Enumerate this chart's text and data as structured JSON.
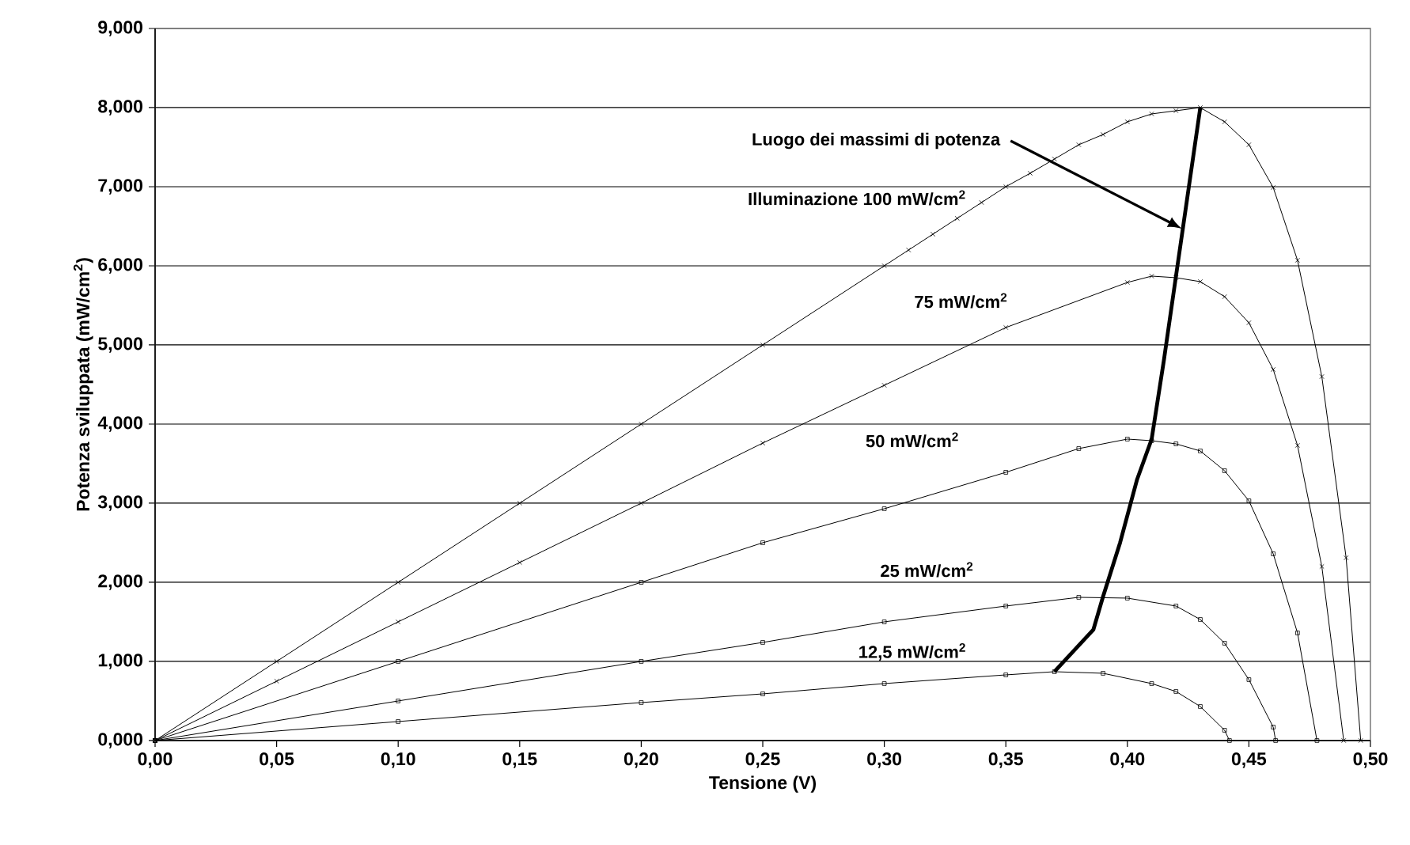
{
  "chart_data": {
    "type": "line",
    "xlabel": "Tensione (V)",
    "ylabel": "Potenza sviluppata (mW/cm$^{2}$)",
    "xlim": [
      0,
      0.5
    ],
    "ylim": [
      0,
      9
    ],
    "xticks": [
      {
        "value": 0,
        "label": "0,00"
      },
      {
        "value": 0.05,
        "label": "0,05"
      },
      {
        "value": 0.1,
        "label": "0,10"
      },
      {
        "value": 0.15,
        "label": "0,15"
      },
      {
        "value": 0.2,
        "label": "0,20"
      },
      {
        "value": 0.25,
        "label": "0,25"
      },
      {
        "value": 0.3,
        "label": "0,30"
      },
      {
        "value": 0.35,
        "label": "0,35"
      },
      {
        "value": 0.4,
        "label": "0,40"
      },
      {
        "value": 0.45,
        "label": "0,45"
      },
      {
        "value": 0.5,
        "label": "0,50"
      }
    ],
    "yticks": [
      {
        "value": 0,
        "label": "0,000"
      },
      {
        "value": 1,
        "label": "1,000"
      },
      {
        "value": 2,
        "label": "2,000"
      },
      {
        "value": 3,
        "label": "3,000"
      },
      {
        "value": 4,
        "label": "4,000"
      },
      {
        "value": 5,
        "label": "5,000"
      },
      {
        "value": 6,
        "label": "6,000"
      },
      {
        "value": 7,
        "label": "7,000"
      },
      {
        "value": 8,
        "label": "8,000"
      },
      {
        "value": 9,
        "label": "9,000"
      }
    ],
    "grid": "y",
    "legend": false,
    "annotations": [
      {
        "text": "Luogo dei massimi di potenza",
        "x": 0.4225,
        "y": 6.47
      }
    ],
    "series": [
      {
        "name": "Illuminazione 100 mW/cm$^{2}$",
        "color": "#000000",
        "marker": "cross",
        "x": [
          0,
          0.05,
          0.1,
          0.15,
          0.2,
          0.25,
          0.3,
          0.31,
          0.32,
          0.33,
          0.34,
          0.35,
          0.36,
          0.37,
          0.38,
          0.39,
          0.4,
          0.41,
          0.42,
          0.43,
          0.44,
          0.45,
          0.46,
          0.47,
          0.48,
          0.49,
          0.496
        ],
        "values": [
          0,
          1,
          2,
          3,
          4,
          5,
          6,
          6.2,
          6.4,
          6.6,
          6.8,
          7,
          7.17,
          7.35,
          7.53,
          7.66,
          7.82,
          7.92,
          7.96,
          8,
          7.82,
          7.53,
          6.99,
          6.07,
          4.6,
          2.31,
          0
        ]
      },
      {
        "name": "75 mW/cm$^{2}$",
        "color": "#000000",
        "marker": "cross",
        "x": [
          0,
          0.05,
          0.1,
          0.15,
          0.2,
          0.25,
          0.3,
          0.35,
          0.4,
          0.41,
          0.42,
          0.43,
          0.44,
          0.45,
          0.46,
          0.47,
          0.48,
          0.489
        ],
        "values": [
          0,
          0.75,
          1.5,
          2.25,
          3,
          3.76,
          4.49,
          5.22,
          5.79,
          5.87,
          5.85,
          5.8,
          5.61,
          5.28,
          4.69,
          3.73,
          2.2,
          0
        ]
      },
      {
        "name": "50 mW/cm$^{2}$",
        "color": "#000000",
        "marker": "square",
        "x": [
          0,
          0.1,
          0.2,
          0.25,
          0.3,
          0.35,
          0.38,
          0.4,
          0.41,
          0.42,
          0.43,
          0.44,
          0.45,
          0.46,
          0.47,
          0.478
        ],
        "values": [
          0,
          1,
          2,
          2.5,
          2.93,
          3.39,
          3.69,
          3.81,
          3.79,
          3.75,
          3.66,
          3.41,
          3.03,
          2.36,
          1.36,
          0
        ]
      },
      {
        "name": "25 mW/cm$^{2}$",
        "color": "#000000",
        "marker": "square",
        "x": [
          0,
          0.1,
          0.2,
          0.25,
          0.3,
          0.35,
          0.38,
          0.4,
          0.42,
          0.43,
          0.44,
          0.45,
          0.46,
          0.461
        ],
        "values": [
          0,
          0.5,
          1,
          1.24,
          1.5,
          1.7,
          1.81,
          1.8,
          1.7,
          1.53,
          1.23,
          0.77,
          0.17,
          0
        ]
      },
      {
        "name": "12,5 mW/cm$^{2}$",
        "color": "#000000",
        "marker": "square",
        "x": [
          0,
          0.1,
          0.2,
          0.25,
          0.3,
          0.35,
          0.37,
          0.39,
          0.41,
          0.42,
          0.43,
          0.44,
          0.442
        ],
        "values": [
          0,
          0.24,
          0.48,
          0.59,
          0.72,
          0.83,
          0.87,
          0.85,
          0.72,
          0.62,
          0.43,
          0.13,
          0
        ]
      },
      {
        "color": "#000000",
        "marker": "none",
        "x": [
          0.37,
          0.386,
          0.39,
          0.397,
          0.404,
          0.41,
          0.415,
          0.42,
          0.43
        ],
        "values": [
          0.87,
          1.4,
          1.82,
          2.5,
          3.3,
          3.81,
          4.8,
          5.87,
          8
        ]
      }
    ]
  }
}
